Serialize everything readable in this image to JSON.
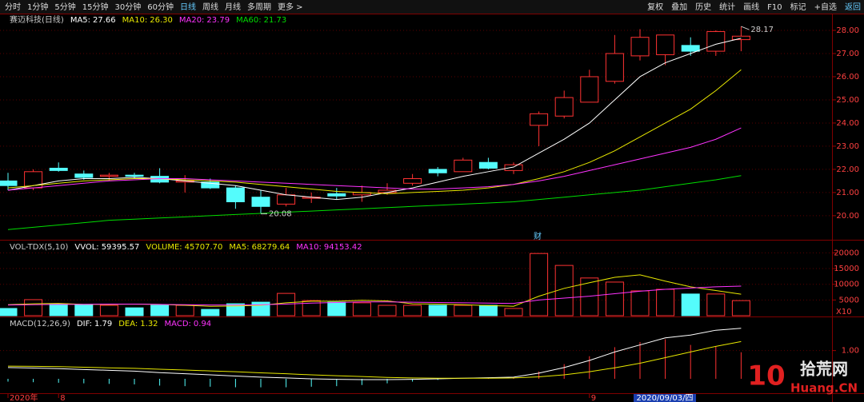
{
  "toolbar": {
    "left": [
      "分时",
      "1分钟",
      "5分钟",
      "15分钟",
      "30分钟",
      "60分钟",
      "日线",
      "周线",
      "月线",
      "多周期",
      "更多 >"
    ],
    "active": 6,
    "right": [
      "复权",
      "叠加",
      "历史",
      "统计",
      "画线",
      "F10",
      "标记",
      "+自选",
      "返回"
    ]
  },
  "price_panel": {
    "title": "赛迈科技(日线)",
    "ylim": [
      19.03,
      28.69
    ],
    "yticks": [
      {
        "value": 20,
        "label": "20.00"
      },
      {
        "value": 21,
        "label": "21.00"
      },
      {
        "value": 22,
        "label": "22.00"
      },
      {
        "value": 23,
        "label": "23.00"
      },
      {
        "value": 24,
        "label": "24.00"
      },
      {
        "value": 25,
        "label": "25.00"
      },
      {
        "value": 26,
        "label": "26.00"
      },
      {
        "value": 27,
        "label": "27.00"
      },
      {
        "value": 28,
        "label": "28.00"
      }
    ],
    "indicators": [
      {
        "label": "MA5:",
        "value": "27.66",
        "color": "#ffffff",
        "values": [
          21.1,
          21.3,
          21.5,
          21.6,
          21.6,
          21.65,
          21.6,
          21.5,
          21.4,
          21.3,
          21.1,
          20.9,
          20.8,
          20.7,
          20.8,
          21.0,
          21.2,
          21.45,
          21.7,
          21.9,
          22.1,
          22.7,
          23.3,
          24.0,
          25.0,
          26.0,
          26.6,
          27.0,
          27.4,
          27.66
        ]
      },
      {
        "label": "MA10:",
        "value": "26.30",
        "color": "#e8e800",
        "values": [
          21.2,
          21.3,
          21.4,
          21.5,
          21.55,
          21.6,
          21.6,
          21.55,
          21.5,
          21.45,
          21.35,
          21.25,
          21.15,
          21.05,
          21.0,
          20.95,
          21.0,
          21.05,
          21.1,
          21.2,
          21.35,
          21.6,
          21.9,
          22.3,
          22.8,
          23.4,
          24.0,
          24.6,
          25.4,
          26.3
        ]
      },
      {
        "label": "MA20:",
        "value": "23.79",
        "color": "#ff33ff",
        "values": [
          21.1,
          21.2,
          21.3,
          21.4,
          21.5,
          21.55,
          21.6,
          21.6,
          21.55,
          21.5,
          21.45,
          21.4,
          21.35,
          21.3,
          21.25,
          21.2,
          21.15,
          21.15,
          21.2,
          21.25,
          21.35,
          21.5,
          21.7,
          21.95,
          22.2,
          22.45,
          22.7,
          22.95,
          23.3,
          23.79
        ]
      },
      {
        "label": "MA60:",
        "value": "21.73",
        "color": "#00dd00",
        "values": [
          19.4,
          19.5,
          19.6,
          19.7,
          19.8,
          19.85,
          19.9,
          19.95,
          20.0,
          20.05,
          20.1,
          20.15,
          20.2,
          20.25,
          20.3,
          20.35,
          20.4,
          20.45,
          20.5,
          20.55,
          20.6,
          20.7,
          20.8,
          20.9,
          21.0,
          21.1,
          21.25,
          21.4,
          21.55,
          21.73
        ]
      }
    ],
    "candles": [
      {
        "open": 21.5,
        "high": 21.85,
        "low": 21.1,
        "close": 21.3
      },
      {
        "open": 21.2,
        "high": 22.0,
        "low": 21.1,
        "close": 21.9
      },
      {
        "open": 22.05,
        "high": 22.3,
        "low": 21.9,
        "close": 21.95
      },
      {
        "open": 21.8,
        "high": 21.95,
        "low": 21.55,
        "close": 21.65
      },
      {
        "open": 21.7,
        "high": 21.85,
        "low": 21.5,
        "close": 21.75
      },
      {
        "open": 21.75,
        "high": 21.85,
        "low": 21.6,
        "close": 21.7
      },
      {
        "open": 21.7,
        "high": 22.05,
        "low": 21.4,
        "close": 21.45
      },
      {
        "open": 21.45,
        "high": 21.75,
        "low": 21.0,
        "close": 21.5
      },
      {
        "open": 21.45,
        "high": 21.6,
        "low": 21.15,
        "close": 21.2
      },
      {
        "open": 21.2,
        "high": 21.3,
        "low": 20.3,
        "close": 20.6
      },
      {
        "open": 20.8,
        "high": 21.1,
        "low": 20.08,
        "close": 20.4
      },
      {
        "open": 20.5,
        "high": 21.2,
        "low": 20.4,
        "close": 20.9
      },
      {
        "open": 20.75,
        "high": 21.0,
        "low": 20.55,
        "close": 20.8
      },
      {
        "open": 20.95,
        "high": 21.2,
        "low": 20.7,
        "close": 20.85
      },
      {
        "open": 20.9,
        "high": 21.3,
        "low": 20.6,
        "close": 21.0
      },
      {
        "open": 21.0,
        "high": 21.4,
        "low": 20.9,
        "close": 21.1
      },
      {
        "open": 21.4,
        "high": 21.8,
        "low": 21.3,
        "close": 21.6
      },
      {
        "open": 22.0,
        "high": 22.1,
        "low": 21.7,
        "close": 21.85
      },
      {
        "open": 21.9,
        "high": 22.5,
        "low": 21.9,
        "close": 22.4
      },
      {
        "open": 22.3,
        "high": 22.5,
        "low": 22.0,
        "close": 22.05
      },
      {
        "open": 21.95,
        "high": 22.3,
        "low": 21.8,
        "close": 22.2
      },
      {
        "open": 23.9,
        "high": 24.5,
        "low": 23.0,
        "close": 24.4
      },
      {
        "open": 24.3,
        "high": 25.4,
        "low": 24.2,
        "close": 25.1
      },
      {
        "open": 24.9,
        "high": 26.3,
        "low": 24.9,
        "close": 26.0
      },
      {
        "open": 25.8,
        "high": 27.8,
        "low": 25.7,
        "close": 27.0
      },
      {
        "open": 26.9,
        "high": 28.05,
        "low": 26.7,
        "close": 27.7
      },
      {
        "open": 26.95,
        "high": 27.8,
        "low": 26.5,
        "close": 27.8
      },
      {
        "open": 27.35,
        "high": 27.7,
        "low": 26.9,
        "close": 27.1
      },
      {
        "open": 27.1,
        "high": 28.0,
        "low": 26.9,
        "close": 27.95
      },
      {
        "open": 27.6,
        "high": 28.17,
        "low": 27.1,
        "close": 27.75
      }
    ],
    "high_label": "28.17",
    "low_label": "20.08",
    "marker": "财"
  },
  "volume_panel": {
    "title": "VOL-TDX(5,10)",
    "ylim": [
      0,
      23660
    ],
    "yticks": [
      5000,
      10000,
      15000,
      20000
    ],
    "unit": "X10",
    "indicators": [
      {
        "label": "VVOL:",
        "value": "59395.57",
        "color": "#ffffff"
      },
      {
        "label": "VOLUME:",
        "value": "45707.70",
        "color": "#e8e800"
      },
      {
        "label": "MA5:",
        "value": "68279.64",
        "color": "#e8e800",
        "values": [
          3500,
          3800,
          3900,
          3600,
          3600,
          3700,
          3600,
          3300,
          3000,
          3100,
          3300,
          4100,
          4600,
          4600,
          4900,
          4700,
          3800,
          3700,
          3500,
          3200,
          3000,
          6200,
          8700,
          10500,
          12200,
          13000,
          11000,
          9200,
          8000,
          6828
        ]
      },
      {
        "label": "MA10:",
        "value": "94153.42",
        "color": "#ff33ff",
        "values": [
          3400,
          3500,
          3600,
          3600,
          3700,
          3700,
          3600,
          3500,
          3400,
          3400,
          3500,
          3700,
          4000,
          4200,
          4400,
          4400,
          4300,
          4200,
          4100,
          4000,
          3900,
          5000,
          5600,
          6200,
          7000,
          7800,
          8400,
          8800,
          9200,
          9415
        ]
      }
    ],
    "values": [
      2300,
      5100,
      3800,
      3600,
      3300,
      2500,
      3300,
      3300,
      2000,
      3800,
      4300,
      7100,
      4800,
      4300,
      4100,
      3300,
      3300,
      3300,
      3300,
      3300,
      2300,
      19800,
      16000,
      12000,
      10700,
      7900,
      8400,
      6900,
      6900,
      4800
    ]
  },
  "macd_panel": {
    "title": "MACD(12,26,9)",
    "ylim": [
      -0.51,
      2.15
    ],
    "yticks": [
      {
        "value": 1,
        "label": "1.00"
      }
    ],
    "indicators": [
      {
        "label": "DIF:",
        "value": "1.79",
        "color": "#ffffff",
        "values": [
          0.4,
          0.38,
          0.36,
          0.33,
          0.3,
          0.27,
          0.22,
          0.18,
          0.14,
          0.1,
          0.06,
          0.03,
          0.0,
          -0.02,
          -0.03,
          -0.03,
          -0.02,
          0.0,
          0.02,
          0.04,
          0.06,
          0.2,
          0.4,
          0.65,
          0.95,
          1.2,
          1.45,
          1.55,
          1.72,
          1.79
        ]
      },
      {
        "label": "DEA:",
        "value": "1.32",
        "color": "#e8e800",
        "values": [
          0.45,
          0.44,
          0.43,
          0.41,
          0.39,
          0.37,
          0.34,
          0.31,
          0.28,
          0.25,
          0.21,
          0.18,
          0.14,
          0.11,
          0.08,
          0.05,
          0.03,
          0.02,
          0.02,
          0.02,
          0.03,
          0.07,
          0.14,
          0.25,
          0.39,
          0.55,
          0.75,
          0.95,
          1.15,
          1.32
        ]
      },
      {
        "label": "MACD:",
        "value": "0.94",
        "color": "#ff33ff",
        "values": [
          -0.1,
          -0.12,
          -0.14,
          -0.16,
          -0.18,
          -0.2,
          -0.24,
          -0.26,
          -0.28,
          -0.3,
          -0.3,
          -0.3,
          -0.28,
          -0.26,
          -0.22,
          -0.16,
          -0.1,
          -0.04,
          0.0,
          0.04,
          0.06,
          0.26,
          0.52,
          0.8,
          1.12,
          1.3,
          1.4,
          1.2,
          1.14,
          0.94
        ]
      }
    ]
  },
  "date_axis": {
    "labels": [
      {
        "text": "2020年",
        "index": 0
      },
      {
        "text": "8",
        "index": 2
      },
      {
        "text": "9",
        "index": 23
      }
    ],
    "cursor": "2020/09/03/四"
  },
  "watermark": {
    "number": "10",
    "name": "拾荒网",
    "site": "Huang.CN"
  }
}
